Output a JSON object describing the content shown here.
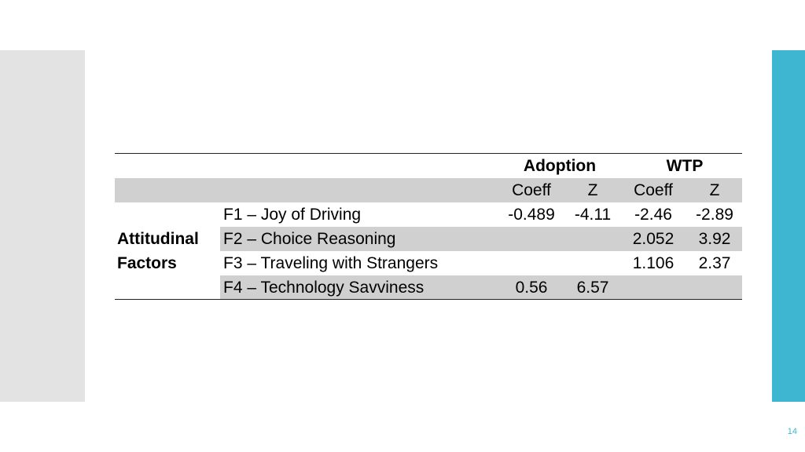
{
  "table": {
    "header": {
      "group_1": "Adoption",
      "group_2": "WTP",
      "sub": [
        "Coeff",
        "Z",
        "Coeff",
        "Z"
      ]
    },
    "group_label_line1": "Attitudinal",
    "group_label_line2": "Factors",
    "rows": [
      {
        "label": "F1 – Joy of Driving",
        "adoption_coeff": "-0.489",
        "adoption_z": "-4.11",
        "wtp_coeff": "-2.46",
        "wtp_z": "-2.89"
      },
      {
        "label": "F2 – Choice Reasoning",
        "adoption_coeff": "",
        "adoption_z": "",
        "wtp_coeff": "2.052",
        "wtp_z": "3.92"
      },
      {
        "label": "F3 – Traveling with Strangers",
        "adoption_coeff": "",
        "adoption_z": "",
        "wtp_coeff": "1.106",
        "wtp_z": "2.37"
      },
      {
        "label": "F4 – Technology Savviness",
        "adoption_coeff": "0.56",
        "adoption_z": "6.57",
        "wtp_coeff": "",
        "wtp_z": ""
      }
    ]
  },
  "page_number": "14",
  "colors": {
    "accent": "#3eb6d2",
    "shade": "#d0d0d0",
    "left_panel": "#e3e3e3"
  }
}
